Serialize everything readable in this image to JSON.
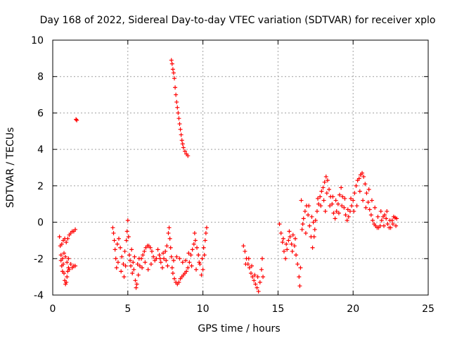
{
  "chart_data": {
    "type": "scatter",
    "title": "Day 168 of 2022, Sidereal Day-to-day VTEC variation (SDTVAR) for receiver xplo",
    "xlabel": "GPS time / hours",
    "ylabel": "SDTVAR / TECUs",
    "xlim": [
      0,
      25
    ],
    "ylim": [
      -4,
      10
    ],
    "xticks": [
      0,
      5,
      10,
      15,
      20,
      25
    ],
    "yticks": [
      -4,
      -2,
      0,
      2,
      4,
      6,
      8,
      10
    ],
    "xtick_labels": [
      "0",
      "5",
      "10",
      "15",
      "20",
      "25"
    ],
    "ytick_labels": [
      "-4",
      "-2",
      "0",
      "2",
      "4",
      "6",
      "8",
      "10"
    ],
    "grid": true,
    "marker": "+",
    "color": "#ff0000",
    "series": [
      {
        "name": "SDTVAR",
        "points": [
          [
            0.45,
            -0.8
          ],
          [
            0.5,
            -1.3
          ],
          [
            0.55,
            -1.8
          ],
          [
            0.6,
            -2.4
          ],
          [
            0.65,
            -2.7
          ],
          [
            0.7,
            -2.3
          ],
          [
            0.75,
            -2.8
          ],
          [
            0.8,
            -3.2
          ],
          [
            0.85,
            -3.4
          ],
          [
            0.9,
            -3.3
          ],
          [
            0.95,
            -3.0
          ],
          [
            1.0,
            -2.7
          ],
          [
            1.05,
            -2.5
          ],
          [
            1.1,
            -2.6
          ],
          [
            1.2,
            -2.3
          ],
          [
            1.3,
            -2.5
          ],
          [
            1.4,
            -2.4
          ],
          [
            1.5,
            -2.4
          ],
          [
            0.6,
            -1.2
          ],
          [
            0.7,
            -1.0
          ],
          [
            0.8,
            -0.9
          ],
          [
            0.9,
            -1.1
          ],
          [
            1.0,
            -0.9
          ],
          [
            1.1,
            -0.7
          ],
          [
            1.2,
            -0.6
          ],
          [
            1.3,
            -0.5
          ],
          [
            1.4,
            -0.5
          ],
          [
            1.5,
            -0.4
          ],
          [
            1.55,
            5.65
          ],
          [
            1.6,
            5.6
          ],
          [
            0.55,
            -2.1
          ],
          [
            0.65,
            -2.0
          ],
          [
            0.75,
            -1.7
          ],
          [
            0.85,
            -1.9
          ],
          [
            0.95,
            -2.2
          ],
          [
            1.05,
            -2.0
          ],
          [
            4.0,
            -0.3
          ],
          [
            4.05,
            -0.6
          ],
          [
            4.1,
            -1.0
          ],
          [
            4.15,
            -1.5
          ],
          [
            4.2,
            -2.0
          ],
          [
            4.25,
            -2.5
          ],
          [
            4.3,
            -1.2
          ],
          [
            4.4,
            -0.9
          ],
          [
            4.5,
            -1.4
          ],
          [
            4.6,
            -1.9
          ],
          [
            4.7,
            -2.3
          ],
          [
            4.8,
            -1.6
          ],
          [
            4.9,
            -1.0
          ],
          [
            4.95,
            -0.5
          ],
          [
            5.0,
            0.1
          ],
          [
            5.05,
            -0.8
          ],
          [
            5.1,
            -1.8
          ],
          [
            5.2,
            -2.4
          ],
          [
            5.3,
            -2.8
          ],
          [
            5.4,
            -2.6
          ],
          [
            5.5,
            -3.2
          ],
          [
            5.55,
            -3.6
          ],
          [
            5.6,
            -3.4
          ],
          [
            5.7,
            -2.9
          ],
          [
            5.8,
            -2.4
          ],
          [
            5.9,
            -2.0
          ],
          [
            6.0,
            -1.8
          ],
          [
            6.1,
            -1.6
          ],
          [
            6.2,
            -1.4
          ],
          [
            6.3,
            -1.3
          ],
          [
            6.4,
            -1.3
          ],
          [
            6.5,
            -1.4
          ],
          [
            6.6,
            -1.6
          ],
          [
            6.7,
            -1.9
          ],
          [
            6.8,
            -2.1
          ],
          [
            6.9,
            -2.0
          ],
          [
            4.35,
            -2.2
          ],
          [
            4.55,
            -2.7
          ],
          [
            4.75,
            -3.0
          ],
          [
            4.85,
            -2.4
          ],
          [
            5.15,
            -2.1
          ],
          [
            5.35,
            -2.2
          ],
          [
            5.65,
            -2.3
          ],
          [
            5.75,
            -2.0
          ],
          [
            5.95,
            -2.5
          ],
          [
            6.15,
            -2.2
          ],
          [
            6.35,
            -2.6
          ],
          [
            6.55,
            -2.3
          ],
          [
            5.25,
            -1.5
          ],
          [
            5.45,
            -1.9
          ],
          [
            7.0,
            -1.5
          ],
          [
            7.1,
            -1.8
          ],
          [
            7.2,
            -2.2
          ],
          [
            7.3,
            -2.5
          ],
          [
            7.4,
            -2.0
          ],
          [
            7.5,
            -1.6
          ],
          [
            7.6,
            -1.3
          ],
          [
            7.7,
            -0.6
          ],
          [
            7.75,
            -0.3
          ],
          [
            7.8,
            -0.9
          ],
          [
            7.85,
            -1.4
          ],
          [
            7.9,
            -1.9
          ],
          [
            7.95,
            -2.5
          ],
          [
            8.0,
            -2.8
          ],
          [
            8.1,
            -3.1
          ],
          [
            8.2,
            -3.3
          ],
          [
            8.3,
            -3.4
          ],
          [
            8.4,
            -3.3
          ],
          [
            8.5,
            -3.1
          ],
          [
            8.6,
            -3.0
          ],
          [
            8.7,
            -2.9
          ],
          [
            8.8,
            -2.8
          ],
          [
            8.9,
            -2.7
          ],
          [
            9.0,
            -2.5
          ],
          [
            9.1,
            -2.2
          ],
          [
            9.2,
            -1.8
          ],
          [
            9.3,
            -1.5
          ],
          [
            9.4,
            -1.2
          ],
          [
            9.45,
            -0.6
          ],
          [
            9.5,
            -1.0
          ],
          [
            9.6,
            -1.4
          ],
          [
            9.7,
            -1.8
          ],
          [
            9.8,
            -2.3
          ],
          [
            9.9,
            -2.9
          ],
          [
            10.0,
            -2.6
          ],
          [
            10.1,
            -1.8
          ],
          [
            10.15,
            -1.0
          ],
          [
            10.2,
            -0.6
          ],
          [
            10.25,
            -0.3
          ],
          [
            7.15,
            -2.0
          ],
          [
            7.35,
            -1.7
          ],
          [
            7.55,
            -2.1
          ],
          [
            7.65,
            -2.4
          ],
          [
            8.05,
            -2.1
          ],
          [
            8.25,
            -1.9
          ],
          [
            8.45,
            -2.0
          ],
          [
            8.65,
            -2.2
          ],
          [
            8.85,
            -2.1
          ],
          [
            9.05,
            -1.7
          ],
          [
            9.25,
            -2.4
          ],
          [
            9.55,
            -2.6
          ],
          [
            9.75,
            -2.2
          ],
          [
            9.95,
            -2.0
          ],
          [
            10.05,
            -1.4
          ],
          [
            7.9,
            8.9
          ],
          [
            7.95,
            8.7
          ],
          [
            8.0,
            8.4
          ],
          [
            8.05,
            8.2
          ],
          [
            8.1,
            7.9
          ],
          [
            8.15,
            7.4
          ],
          [
            8.2,
            7.0
          ],
          [
            8.25,
            6.6
          ],
          [
            8.3,
            6.3
          ],
          [
            8.35,
            6.0
          ],
          [
            8.4,
            5.7
          ],
          [
            8.45,
            5.4
          ],
          [
            8.5,
            5.1
          ],
          [
            8.55,
            4.8
          ],
          [
            8.6,
            4.5
          ],
          [
            8.65,
            4.3
          ],
          [
            8.7,
            4.1
          ],
          [
            8.8,
            3.9
          ],
          [
            8.9,
            3.75
          ],
          [
            9.0,
            3.65
          ],
          [
            12.7,
            -1.3
          ],
          [
            12.8,
            -1.6
          ],
          [
            12.9,
            -2.0
          ],
          [
            13.0,
            -2.3
          ],
          [
            13.1,
            -2.5
          ],
          [
            13.2,
            -2.8
          ],
          [
            13.3,
            -3.0
          ],
          [
            13.4,
            -3.2
          ],
          [
            13.5,
            -3.4
          ],
          [
            13.6,
            -3.6
          ],
          [
            13.7,
            -3.8
          ],
          [
            13.8,
            -3.3
          ],
          [
            13.9,
            -2.6
          ],
          [
            13.95,
            -2.0
          ],
          [
            14.0,
            -3.0
          ],
          [
            12.85,
            -2.3
          ],
          [
            13.05,
            -2.0
          ],
          [
            13.25,
            -2.4
          ],
          [
            13.45,
            -2.9
          ],
          [
            13.65,
            -3.0
          ],
          [
            15.1,
            -0.1
          ],
          [
            15.2,
            -0.6
          ],
          [
            15.3,
            -1.1
          ],
          [
            15.4,
            -1.6
          ],
          [
            15.5,
            -2.0
          ],
          [
            15.6,
            -1.5
          ],
          [
            15.7,
            -1.0
          ],
          [
            15.8,
            -0.8
          ],
          [
            15.9,
            -1.2
          ],
          [
            16.0,
            -0.7
          ],
          [
            16.1,
            -1.3
          ],
          [
            16.2,
            -1.8
          ],
          [
            16.3,
            -2.3
          ],
          [
            16.4,
            -3.0
          ],
          [
            16.45,
            -3.5
          ],
          [
            16.5,
            -2.5
          ],
          [
            16.6,
            -0.4
          ],
          [
            16.7,
            0.2
          ],
          [
            16.8,
            0.6
          ],
          [
            16.9,
            0.9
          ],
          [
            17.0,
            0.4
          ],
          [
            17.1,
            -0.2
          ],
          [
            17.2,
            -0.8
          ],
          [
            17.3,
            -1.4
          ],
          [
            17.4,
            -0.8
          ],
          [
            17.5,
            0.1
          ],
          [
            17.6,
            0.6
          ],
          [
            17.7,
            1.0
          ],
          [
            17.8,
            1.4
          ],
          [
            17.9,
            1.7
          ],
          [
            18.0,
            1.9
          ],
          [
            18.1,
            2.2
          ],
          [
            18.2,
            2.5
          ],
          [
            18.3,
            2.3
          ],
          [
            18.4,
            1.8
          ],
          [
            18.5,
            1.4
          ],
          [
            18.6,
            1.0
          ],
          [
            18.7,
            0.5
          ],
          [
            18.8,
            0.2
          ],
          [
            18.9,
            0.6
          ],
          [
            19.0,
            1.0
          ],
          [
            19.1,
            1.5
          ],
          [
            19.2,
            1.9
          ],
          [
            19.3,
            1.4
          ],
          [
            19.4,
            0.8
          ],
          [
            19.5,
            0.4
          ],
          [
            19.6,
            0.1
          ],
          [
            19.7,
            0.3
          ],
          [
            19.8,
            0.6
          ],
          [
            19.9,
            0.9
          ],
          [
            20.0,
            1.2
          ],
          [
            20.1,
            1.6
          ],
          [
            20.2,
            2.0
          ],
          [
            20.3,
            2.3
          ],
          [
            20.4,
            2.4
          ],
          [
            20.5,
            2.6
          ],
          [
            20.6,
            2.7
          ],
          [
            20.7,
            2.5
          ],
          [
            20.8,
            2.1
          ],
          [
            20.9,
            1.6
          ],
          [
            21.0,
            1.1
          ],
          [
            21.1,
            0.7
          ],
          [
            21.2,
            0.4
          ],
          [
            21.3,
            0.1
          ],
          [
            21.4,
            -0.1
          ],
          [
            21.5,
            -0.2
          ],
          [
            21.6,
            -0.3
          ],
          [
            21.7,
            -0.3
          ],
          [
            21.8,
            -0.2
          ],
          [
            21.9,
            0.1
          ],
          [
            22.0,
            0.3
          ],
          [
            22.1,
            0.4
          ],
          [
            22.2,
            0.2
          ],
          [
            22.3,
            -0.1
          ],
          [
            22.4,
            -0.3
          ],
          [
            22.5,
            -0.3
          ],
          [
            22.6,
            0.1
          ],
          [
            22.7,
            0.3
          ],
          [
            22.8,
            0.25
          ],
          [
            22.9,
            0.2
          ],
          [
            15.35,
            -0.9
          ],
          [
            15.55,
            -1.2
          ],
          [
            15.75,
            -0.5
          ],
          [
            15.95,
            -1.6
          ],
          [
            16.15,
            -0.9
          ],
          [
            16.65,
            -0.1
          ],
          [
            16.85,
            -0.6
          ],
          [
            17.05,
            0.9
          ],
          [
            17.25,
            0.3
          ],
          [
            17.45,
            -0.4
          ],
          [
            17.65,
            1.3
          ],
          [
            17.85,
            0.9
          ],
          [
            18.05,
            1.2
          ],
          [
            18.25,
            1.6
          ],
          [
            18.45,
            0.9
          ],
          [
            18.65,
            1.4
          ],
          [
            18.85,
            1.2
          ],
          [
            19.05,
            0.5
          ],
          [
            19.25,
            0.9
          ],
          [
            19.45,
            1.3
          ],
          [
            19.65,
            0.7
          ],
          [
            19.85,
            1.3
          ],
          [
            20.05,
            0.6
          ],
          [
            20.25,
            0.9
          ],
          [
            20.45,
            1.7
          ],
          [
            20.65,
            1.2
          ],
          [
            20.85,
            0.8
          ],
          [
            21.05,
            1.8
          ],
          [
            21.25,
            1.2
          ],
          [
            21.45,
            0.8
          ],
          [
            21.65,
            0.3
          ],
          [
            21.85,
            0.6
          ],
          [
            22.05,
            -0.2
          ],
          [
            22.25,
            0.6
          ],
          [
            22.45,
            0.1
          ],
          [
            22.65,
            -0.1
          ],
          [
            22.85,
            -0.2
          ],
          [
            16.55,
            1.2
          ],
          [
            17.35,
            0.0
          ],
          [
            18.15,
            0.6
          ]
        ]
      }
    ]
  }
}
